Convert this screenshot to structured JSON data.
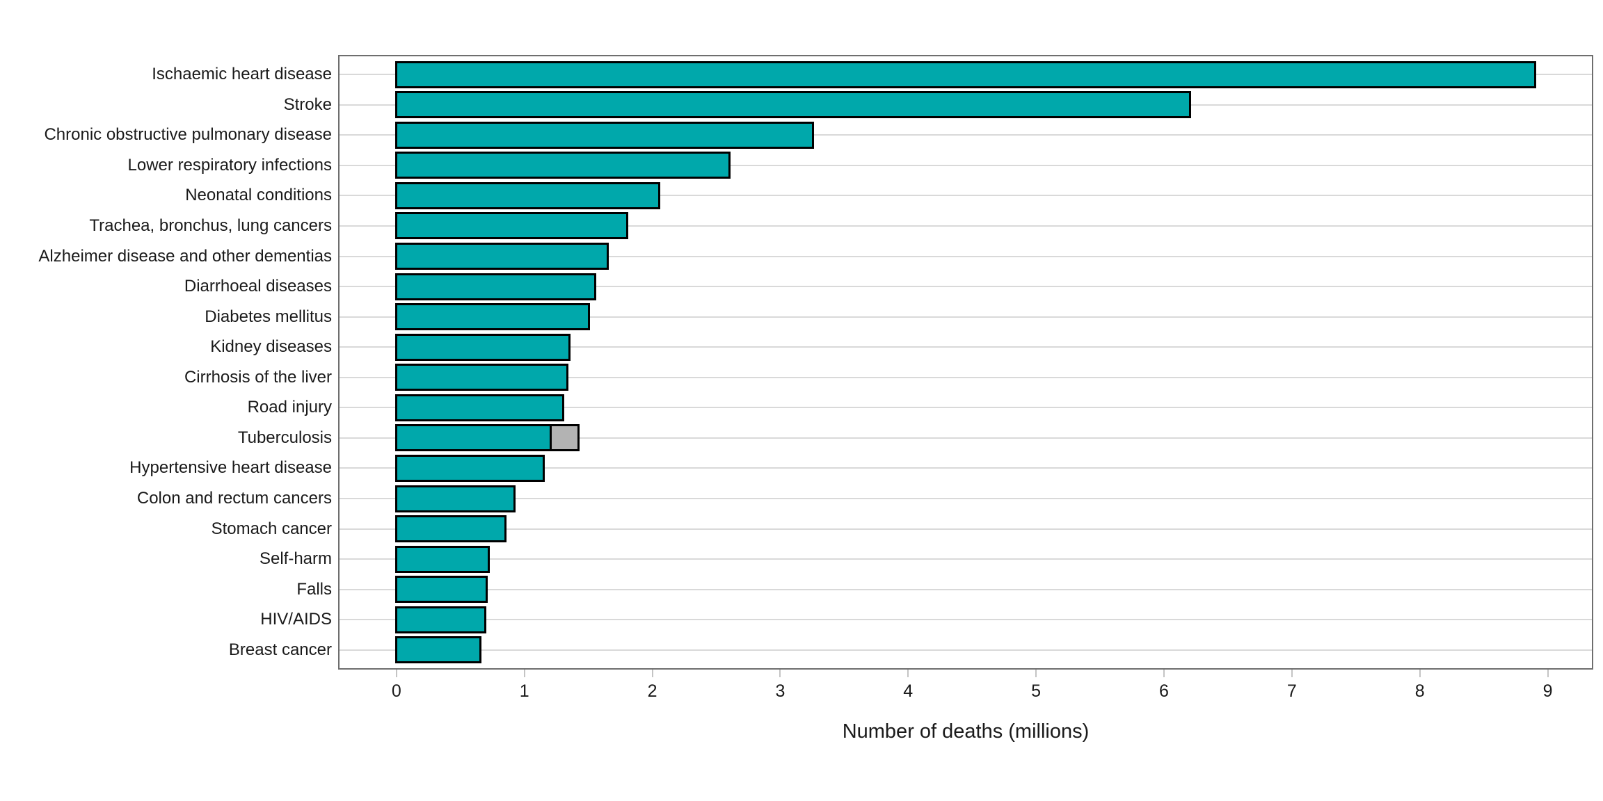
{
  "figure": {
    "background": "#ffffff"
  },
  "colors": {
    "bar_fill": "#00a8ab",
    "bar_border": "#000000",
    "grey_segment_fill": "#b3b3b3",
    "gridline": "#d9d9d9",
    "panel_border": "#6e6e6e",
    "tick_mark": "#c4c4c4",
    "text": "#1a1a1a"
  },
  "chart_data": {
    "type": "bar",
    "orientation": "horizontal",
    "title": "",
    "xlabel": "Number of deaths (millions)",
    "ylabel": "",
    "xlim": [
      -0.445,
      9.345
    ],
    "x_ticks": [
      "0",
      "1",
      "2",
      "3",
      "4",
      "5",
      "6",
      "7",
      "8",
      "9"
    ],
    "grid": "horizontal gridline at each category center, no vertical gridlines",
    "legend_position": "none",
    "categories": [
      "Ischaemic heart disease",
      "Stroke",
      "Chronic obstructive pulmonary disease",
      "Lower respiratory infections",
      "Neonatal conditions",
      "Trachea, bronchus, lung cancers",
      "Alzheimer disease and other dementias",
      "Diarrhoeal diseases",
      "Diabetes mellitus",
      "Kidney diseases",
      "Cirrhosis of the liver",
      "Road injury",
      "Tuberculosis",
      "Hypertensive heart disease",
      "Colon and rectum cancers",
      "Stomach cancer",
      "Self-harm",
      "Falls",
      "HIV/AIDS",
      "Breast cancer"
    ],
    "values": [
      8.9,
      6.2,
      3.25,
      2.6,
      2.05,
      1.8,
      1.65,
      1.55,
      1.5,
      1.35,
      1.33,
      1.3,
      1.2,
      1.15,
      0.92,
      0.85,
      0.72,
      0.7,
      0.69,
      0.65
    ],
    "grey_segment": {
      "category": "Tuberculosis",
      "index": 12,
      "value": 0.22,
      "color": "#b3b3b3"
    }
  }
}
